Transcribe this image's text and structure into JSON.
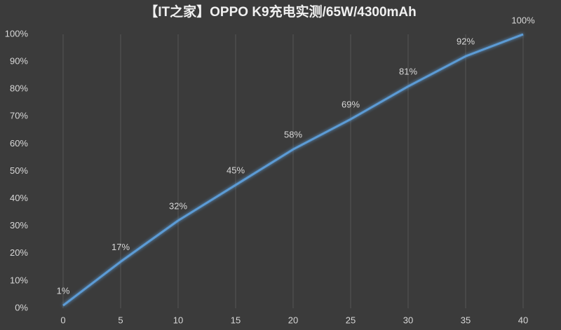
{
  "chart_data": {
    "type": "line",
    "title": "【IT之家】OPPO K9充电实测/65W/4300mAh",
    "x": [
      0,
      5,
      10,
      15,
      20,
      25,
      30,
      35,
      40
    ],
    "series": [
      {
        "color": "#5b9bd5",
        "values": [
          1,
          17,
          32,
          45,
          58,
          69,
          81,
          92,
          100
        ],
        "value_labels": [
          "1%",
          "17%",
          "32%",
          "45%",
          "58%",
          "69%",
          "81%",
          "92%",
          "100%"
        ]
      }
    ],
    "xlim": [
      0,
      40
    ],
    "xticks": [
      0,
      5,
      10,
      15,
      20,
      25,
      30,
      35,
      40
    ],
    "ylim": [
      0,
      100
    ],
    "yticks": [
      {
        "value": 0,
        "label": "0%"
      },
      {
        "value": 10,
        "label": "10%"
      },
      {
        "value": 20,
        "label": "20%"
      },
      {
        "value": 30,
        "label": "30%"
      },
      {
        "value": 40,
        "label": "40%"
      },
      {
        "value": 50,
        "label": "50%"
      },
      {
        "value": 60,
        "label": "60%"
      },
      {
        "value": 70,
        "label": "70%"
      },
      {
        "value": 80,
        "label": "80%"
      },
      {
        "value": 90,
        "label": "90%"
      },
      {
        "value": 100,
        "label": "100%"
      }
    ],
    "grid": "x"
  }
}
